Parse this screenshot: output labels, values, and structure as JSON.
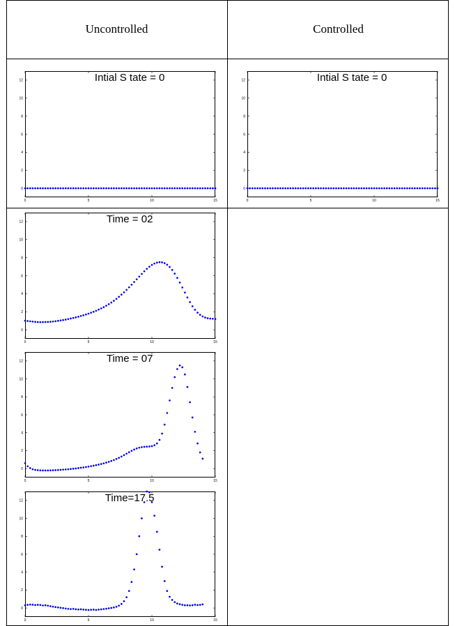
{
  "table": {
    "headers": [
      "Uncontrolled",
      "Controlled"
    ]
  },
  "chart_data": [
    {
      "type": "scatter",
      "panel": "uncontrolled-initial",
      "title": "Intial S tate = 0",
      "xlim": [
        0,
        15
      ],
      "ylim": [
        -1,
        13
      ],
      "xticks": [
        0,
        5,
        10,
        15
      ],
      "yticks": [
        0,
        2,
        4,
        6,
        8,
        10,
        12
      ],
      "color": "#0000ee",
      "x_start": 0,
      "x_step": 0.2,
      "values": [
        0,
        0,
        0,
        0,
        0,
        0,
        0,
        0,
        0,
        0,
        0,
        0,
        0,
        0,
        0,
        0,
        0,
        0,
        0,
        0,
        0,
        0,
        0,
        0,
        0,
        0,
        0,
        0,
        0,
        0,
        0,
        0,
        0,
        0,
        0,
        0,
        0,
        0,
        0,
        0,
        0,
        0,
        0,
        0,
        0,
        0,
        0,
        0,
        0,
        0,
        0,
        0,
        0,
        0,
        0,
        0,
        0,
        0,
        0,
        0,
        0,
        0,
        0,
        0,
        0,
        0,
        0,
        0,
        0,
        0,
        0,
        0,
        0,
        0,
        0,
        0
      ]
    },
    {
      "type": "scatter",
      "panel": "controlled-initial",
      "title": "Intial S tate = 0",
      "xlim": [
        0,
        15
      ],
      "ylim": [
        -1,
        13
      ],
      "xticks": [
        0,
        5,
        10,
        15
      ],
      "yticks": [
        0,
        2,
        4,
        6,
        8,
        10,
        12
      ],
      "color": "#0000ee",
      "x_start": 0,
      "x_step": 0.2,
      "values": [
        0,
        0,
        0,
        0,
        0,
        0,
        0,
        0,
        0,
        0,
        0,
        0,
        0,
        0,
        0,
        0,
        0,
        0,
        0,
        0,
        0,
        0,
        0,
        0,
        0,
        0,
        0,
        0,
        0,
        0,
        0,
        0,
        0,
        0,
        0,
        0,
        0,
        0,
        0,
        0,
        0,
        0,
        0,
        0,
        0,
        0,
        0,
        0,
        0,
        0,
        0,
        0,
        0,
        0,
        0,
        0,
        0,
        0,
        0,
        0,
        0,
        0,
        0,
        0,
        0,
        0,
        0,
        0,
        0,
        0,
        0,
        0,
        0,
        0,
        0,
        0
      ]
    },
    {
      "type": "scatter",
      "panel": "uncontrolled-time-02",
      "title": "Time = 02",
      "xlim": [
        0,
        15
      ],
      "ylim": [
        -1,
        13
      ],
      "xticks": [
        0,
        5,
        10,
        15
      ],
      "yticks": [
        0,
        2,
        4,
        6,
        8,
        10,
        12
      ],
      "color": "#0000ee",
      "x_start": 0,
      "x_step": 0.2,
      "values": [
        1.0,
        0.97,
        0.94,
        0.91,
        0.88,
        0.86,
        0.85,
        0.85,
        0.86,
        0.87,
        0.89,
        0.92,
        0.95,
        0.99,
        1.03,
        1.08,
        1.13,
        1.19,
        1.25,
        1.31,
        1.38,
        1.45,
        1.53,
        1.61,
        1.7,
        1.79,
        1.89,
        2.0,
        2.11,
        2.24,
        2.37,
        2.51,
        2.67,
        2.84,
        3.02,
        3.22,
        3.43,
        3.66,
        3.9,
        4.16,
        4.43,
        4.71,
        5.0,
        5.3,
        5.6,
        5.9,
        6.2,
        6.49,
        6.76,
        7.0,
        7.2,
        7.35,
        7.45,
        7.5,
        7.48,
        7.39,
        7.22,
        6.97,
        6.64,
        6.23,
        5.76,
        5.24,
        4.69,
        4.13,
        3.58,
        3.07,
        2.61,
        2.22,
        1.9,
        1.66,
        1.48,
        1.36,
        1.28,
        1.24,
        1.22,
        1.2
      ]
    },
    {
      "type": "scatter",
      "panel": "uncontrolled-time-07",
      "title": "Time = 07",
      "xlim": [
        0,
        15
      ],
      "ylim": [
        -1,
        13
      ],
      "xticks": [
        0,
        5,
        10,
        15
      ],
      "yticks": [
        0,
        2,
        4,
        6,
        8,
        10,
        12
      ],
      "color": "#0000ee",
      "x_start": 0,
      "x_step": 0.2,
      "values": [
        0.6,
        0.25,
        0.05,
        -0.08,
        -0.15,
        -0.18,
        -0.2,
        -0.21,
        -0.21,
        -0.21,
        -0.2,
        -0.19,
        -0.18,
        -0.16,
        -0.14,
        -0.12,
        -0.1,
        -0.08,
        -0.05,
        -0.02,
        0.01,
        0.05,
        0.09,
        0.13,
        0.17,
        0.22,
        0.27,
        0.32,
        0.38,
        0.44,
        0.51,
        0.58,
        0.66,
        0.75,
        0.85,
        0.95,
        1.07,
        1.2,
        1.34,
        1.5,
        1.66,
        1.82,
        1.98,
        2.12,
        2.24,
        2.33,
        2.39,
        2.42,
        2.44,
        2.46,
        2.5,
        2.6,
        2.8,
        3.2,
        3.9,
        4.9,
        6.2,
        7.6,
        9.0,
        10.2,
        11.1,
        11.5,
        11.3,
        10.5,
        9.1,
        7.4,
        5.7,
        4.1,
        2.8,
        1.8,
        1.1
      ]
    },
    {
      "type": "scatter",
      "panel": "uncontrolled-time-17-5",
      "title": "Time=17.5",
      "xlim": [
        0,
        15
      ],
      "ylim": [
        -1,
        13
      ],
      "xticks": [
        0,
        5,
        10,
        15
      ],
      "yticks": [
        0,
        2,
        4,
        6,
        8,
        10,
        12
      ],
      "color": "#0000ee",
      "x_start": 0,
      "x_step": 0.2,
      "values": [
        0.3,
        0.35,
        0.38,
        0.36,
        0.32,
        0.35,
        0.33,
        0.28,
        0.3,
        0.26,
        0.2,
        0.15,
        0.1,
        0.06,
        0.02,
        -0.02,
        -0.06,
        -0.1,
        -0.12,
        -0.1,
        -0.14,
        -0.17,
        -0.14,
        -0.18,
        -0.2,
        -0.22,
        -0.2,
        -0.18,
        -0.22,
        -0.18,
        -0.15,
        -0.12,
        -0.08,
        -0.04,
        0.0,
        0.06,
        0.14,
        0.26,
        0.45,
        0.75,
        1.2,
        1.9,
        2.9,
        4.3,
        6.0,
        8.0,
        10.0,
        11.8,
        13.0,
        12.9,
        11.8,
        10.3,
        8.5,
        6.5,
        4.6,
        3.0,
        1.9,
        1.25,
        0.9,
        0.65,
        0.5,
        0.42,
        0.35,
        0.3,
        0.3,
        0.28,
        0.3,
        0.36,
        0.32,
        0.35,
        0.4
      ]
    }
  ]
}
